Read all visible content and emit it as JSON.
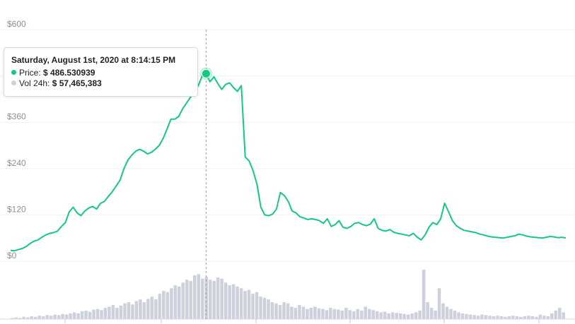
{
  "chart_data": {
    "type": "line",
    "y_axis": {
      "ticks": [
        "$0",
        "$120",
        "$240",
        "$360",
        "$600"
      ],
      "tick_values": [
        0,
        120,
        240,
        360,
        600
      ],
      "range": [
        0,
        600
      ]
    },
    "grid": true,
    "series": [
      {
        "name": "Price",
        "color": "#16c784",
        "values": [
          28,
          27,
          30,
          33,
          38,
          46,
          52,
          55,
          62,
          68,
          72,
          74,
          78,
          90,
          100,
          128,
          140,
          125,
          118,
          130,
          138,
          142,
          135,
          150,
          155,
          168,
          180,
          195,
          210,
          240,
          262,
          275,
          285,
          290,
          285,
          278,
          282,
          290,
          300,
          318,
          342,
          368,
          368,
          375,
          395,
          410,
          425,
          440,
          455,
          480,
          486,
          465,
          478,
          460,
          445,
          458,
          462,
          450,
          440,
          455,
          270,
          260,
          235,
          200,
          140,
          120,
          118,
          122,
          135,
          178,
          170,
          155,
          130,
          125,
          115,
          112,
          108,
          110,
          108,
          105,
          98,
          110,
          90,
          95,
          105,
          88,
          85,
          90,
          98,
          100,
          95,
          92,
          96,
          110,
          85,
          80,
          78,
          82,
          75,
          72,
          70,
          68,
          66,
          72,
          62,
          55,
          68,
          88,
          100,
          95,
          110,
          150,
          128,
          105,
          92,
          85,
          80,
          78,
          76,
          74,
          70,
          68,
          65,
          63,
          62,
          61,
          60,
          62,
          64,
          66,
          70,
          68,
          65,
          63,
          62,
          61,
          60,
          62,
          64,
          63,
          61,
          62,
          60
        ]
      },
      {
        "name": "Vol 24h",
        "color": "#ccd1dc",
        "values": [
          2,
          3,
          2,
          4,
          3,
          5,
          4,
          6,
          5,
          7,
          6,
          8,
          7,
          9,
          8,
          10,
          12,
          10,
          14,
          15,
          13,
          17,
          18,
          16,
          20,
          22,
          25,
          20,
          24,
          28,
          30,
          26,
          32,
          35,
          30,
          36,
          40,
          35,
          45,
          50,
          48,
          55,
          60,
          58,
          65,
          70,
          68,
          78,
          80,
          72,
          75,
          70,
          68,
          74,
          72,
          65,
          60,
          62,
          58,
          55,
          50,
          52,
          45,
          48,
          40,
          38,
          35,
          30,
          28,
          25,
          30,
          28,
          22,
          20,
          25,
          22,
          18,
          20,
          22,
          19,
          18,
          16,
          20,
          18,
          17,
          15,
          20,
          16,
          14,
          18,
          15,
          22,
          18,
          16,
          14,
          12,
          13,
          10,
          12,
          11,
          10,
          9,
          8,
          10,
          12,
          15,
          88,
          30,
          20,
          15,
          55,
          28,
          22,
          18,
          15,
          12,
          10,
          9,
          8,
          7,
          6,
          8,
          7,
          6,
          5,
          6,
          5,
          4,
          5,
          6,
          5,
          4,
          5,
          6,
          5,
          4,
          8,
          6,
          5,
          10,
          15,
          20,
          12
        ]
      }
    ],
    "tooltip": {
      "title": "Saturday, August 1st, 2020 at 8:14:15 PM",
      "items": [
        {
          "label": "Price:",
          "value": "$ 486.530939",
          "color": "#16c784"
        },
        {
          "label": "Vol 24h:",
          "value": "$ 57,465,383",
          "color": "#ccd1dc"
        }
      ]
    }
  }
}
